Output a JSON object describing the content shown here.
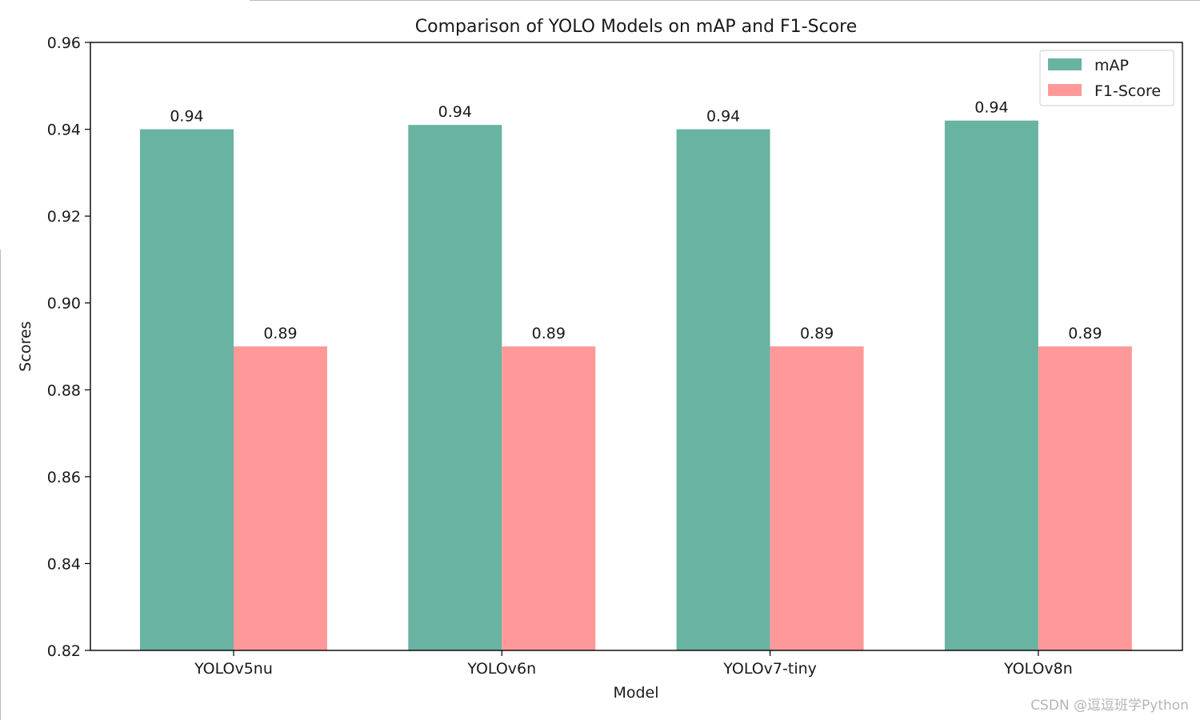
{
  "chart_data": {
    "type": "bar",
    "title": "Comparison of YOLO Models on mAP and F1-Score",
    "xlabel": "Model",
    "ylabel": "Scores",
    "categories": [
      "YOLOv5nu",
      "YOLOv6n",
      "YOLOv7-tiny",
      "YOLOv8n"
    ],
    "series": [
      {
        "name": "mAP",
        "color": "#69b3a2",
        "values": [
          0.94,
          0.941,
          0.94,
          0.942
        ],
        "value_labels": [
          "0.94",
          "0.94",
          "0.94",
          "0.94"
        ]
      },
      {
        "name": "F1-Score",
        "color": "#ff9999",
        "values": [
          0.89,
          0.89,
          0.89,
          0.89
        ],
        "value_labels": [
          "0.89",
          "0.89",
          "0.89",
          "0.89"
        ]
      }
    ],
    "ylim": [
      0.82,
      0.96
    ],
    "yticks": [
      0.82,
      0.84,
      0.86,
      0.88,
      0.9,
      0.92,
      0.94,
      0.96
    ],
    "ytick_labels": [
      "0.82",
      "0.84",
      "0.86",
      "0.88",
      "0.90",
      "0.92",
      "0.94",
      "0.96"
    ],
    "grid": false,
    "legend_position": "top-right"
  },
  "watermark": "CSDN @逗逗班学Python"
}
